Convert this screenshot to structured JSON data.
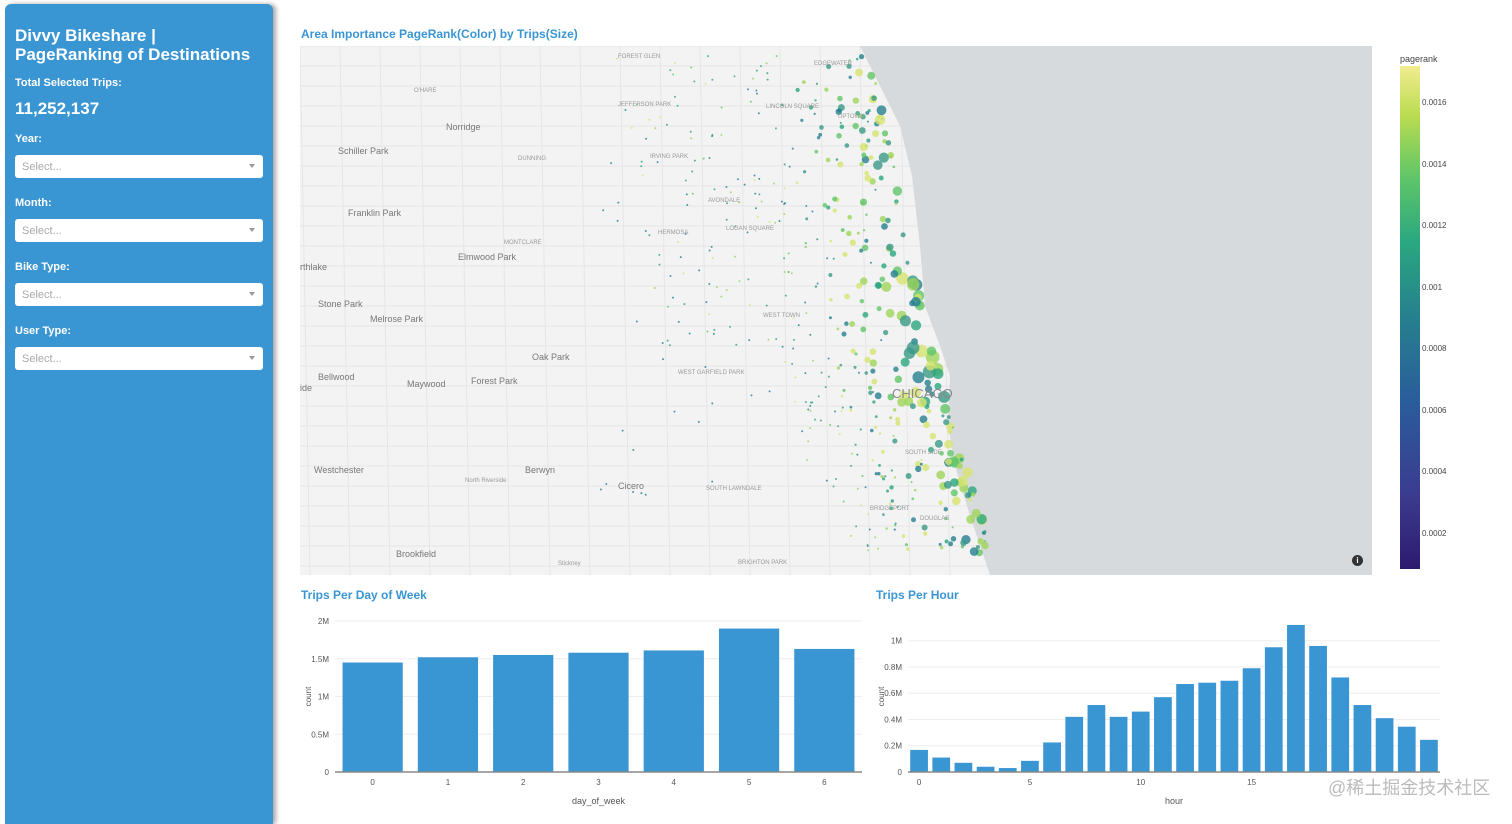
{
  "sidebar": {
    "title": "Divvy Bikeshare | PageRanking of Destinations",
    "total_label": "Total Selected Trips:",
    "total_value": "11,252,137",
    "filters": [
      {
        "label": "Year:",
        "placeholder": "Select..."
      },
      {
        "label": "Month:",
        "placeholder": "Select..."
      },
      {
        "label": "Bike Type:",
        "placeholder": "Select..."
      },
      {
        "label": "User Type:",
        "placeholder": "Select..."
      }
    ]
  },
  "map": {
    "title": "Area Importance PageRank(Color) by Trips(Size)",
    "labels": [
      "FOREST GLEN",
      "EDGEWATER",
      "O'HARE",
      "JEFFERSON PARK",
      "LINCOLN SQUARE",
      "UPTOWN",
      "Norridge",
      "Schiller Park",
      "DUNNING",
      "IRVING PARK",
      "AVONDALE",
      "Franklin Park",
      "HERMOSA",
      "LOGAN SQUARE",
      "MONTCLARE",
      "Elmwood Park",
      "rthlake",
      "Stone Park",
      "Melrose Park",
      "WEST TOWN",
      "Oak Park",
      "Bellwood",
      "Maywood",
      "Forest Park",
      "WEST GARFIELD PARK",
      "CHICAGO",
      "SOUTH SIDE",
      "Westchester",
      "Berwyn",
      "North Riverside",
      "Cicero",
      "SOUTH LAWNDALE",
      "BRIDGEPORT",
      "DOUGLAS",
      "Brookfield",
      "Stickney",
      "BRIGHTON PARK",
      "ide"
    ],
    "colorbar": {
      "title": "pagerank",
      "ticks": [
        "0.0016",
        "0.0014",
        "0.0012",
        "0.001",
        "0.0008",
        "0.0006",
        "0.0004",
        "0.0002"
      ],
      "colors": [
        "#2d1a6e",
        "#26808e",
        "#60c668",
        "#f2ec8f"
      ]
    },
    "info_icon": "info-icon"
  },
  "chart_data": [
    {
      "type": "bar",
      "title": "Trips Per Day of Week",
      "xlabel": "day_of_week",
      "ylabel": "count",
      "categories": [
        "0",
        "1",
        "2",
        "3",
        "4",
        "5",
        "6"
      ],
      "values": [
        1450000,
        1520000,
        1550000,
        1580000,
        1610000,
        1900000,
        1630000
      ],
      "ylim": [
        0,
        2000000
      ],
      "yticks": [
        "0",
        "0.5M",
        "1M",
        "1.5M",
        "2M"
      ],
      "color": "#3a95d3"
    },
    {
      "type": "bar",
      "title": "Trips Per Hour",
      "xlabel": "hour",
      "ylabel": "count",
      "x": [
        0,
        1,
        2,
        3,
        4,
        5,
        6,
        7,
        8,
        9,
        10,
        11,
        12,
        13,
        14,
        15,
        16,
        17,
        18,
        19,
        20,
        21,
        22,
        23
      ],
      "values": [
        168000,
        110000,
        70000,
        40000,
        30000,
        85000,
        225000,
        420000,
        510000,
        420000,
        460000,
        570000,
        670000,
        680000,
        695000,
        790000,
        950000,
        1120000,
        960000,
        720000,
        510000,
        410000,
        345000,
        245000
      ],
      "ylim": [
        0,
        1150000
      ],
      "yticks": [
        "0",
        "0.2M",
        "0.4M",
        "0.6M",
        "0.8M",
        "1M"
      ],
      "xticks": [
        "0",
        "5",
        "10",
        "15"
      ],
      "color": "#3a95d3"
    }
  ],
  "watermark": "@稀土掘金技术社区"
}
